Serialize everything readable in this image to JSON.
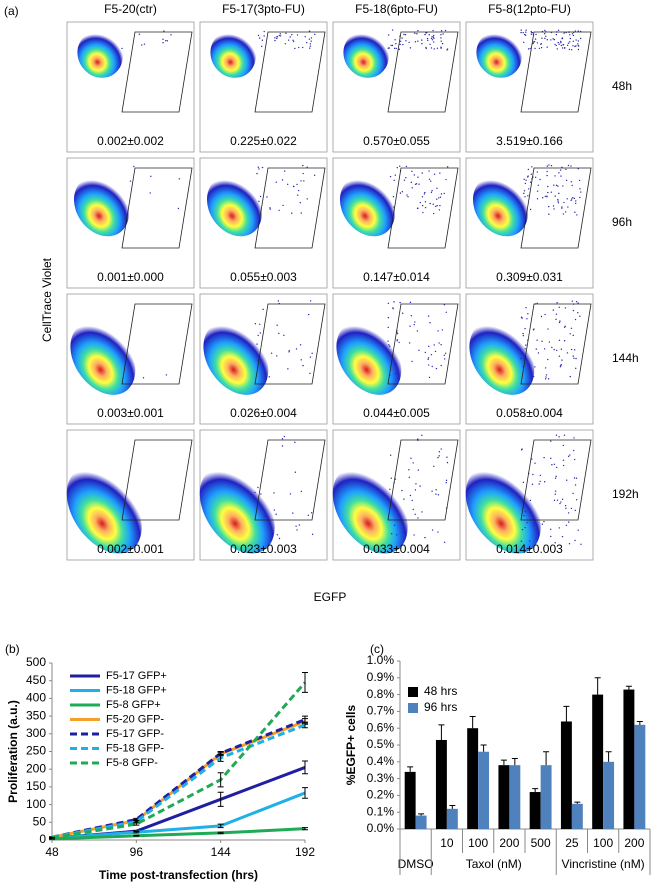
{
  "panel_a": {
    "label": "(a)",
    "columns": [
      "F5-20(ctr)",
      "F5-17(3pto-FU)",
      "F5-18(6pto-FU)",
      "F5-8(12pto-FU)"
    ],
    "rows": [
      "48h",
      "96h",
      "144h",
      "192h"
    ],
    "cells": [
      [
        "0.002±0.002",
        "0.225±0.022",
        "0.570±0.055",
        "3.519±0.166"
      ],
      [
        "0.001±0.000",
        "0.055±0.003",
        "0.147±0.014",
        "0.309±0.031"
      ],
      [
        "0.003±0.001",
        "0.026±0.004",
        "0.044±0.005",
        "0.058±0.004"
      ],
      [
        "0.002±0.001",
        "0.023±0.003",
        "0.033±0.004",
        "0.014±0.003"
      ]
    ],
    "y_label": "CellTrace Violet",
    "x_label": "EGFP"
  },
  "chart_data": [
    {
      "type": "line",
      "label": "(b)",
      "x_label": "Time post-transfection (hrs)",
      "y_label": "Proliferation (a.u.)",
      "x": [
        48,
        96,
        144,
        192
      ],
      "xlim": [
        48,
        192
      ],
      "xticks": [
        48,
        96,
        144,
        192
      ],
      "ylim": [
        0,
        500
      ],
      "yticks": [
        0,
        50,
        100,
        150,
        200,
        250,
        300,
        350,
        400,
        450,
        500
      ],
      "series": [
        {
          "name": "F5-17 GFP+",
          "color": "#1f1fa0",
          "dashed": false,
          "values": [
            5,
            25,
            115,
            205
          ],
          "errors": [
            1,
            2,
            20,
            18
          ]
        },
        {
          "name": "F5-18 GFP+",
          "color": "#1fb0e8",
          "dashed": false,
          "values": [
            5,
            22,
            40,
            133
          ],
          "errors": [
            1,
            2,
            5,
            15
          ]
        },
        {
          "name": "F5-8 GFP+",
          "color": "#1faa55",
          "dashed": false,
          "values": [
            3,
            12,
            20,
            32
          ],
          "errors": [
            1,
            1,
            2,
            3
          ]
        },
        {
          "name": "F5-20  GFP-",
          "color": "#f5a02a",
          "dashed": false,
          "values": [
            8,
            55,
            243,
            335
          ],
          "errors": [
            1,
            3,
            5,
            8
          ]
        },
        {
          "name": "F5-17 GFP-",
          "color": "#1f1fa0",
          "dashed": true,
          "values": [
            8,
            58,
            245,
            340
          ],
          "errors": [
            1,
            3,
            5,
            10
          ]
        },
        {
          "name": "F5-18 GFP-",
          "color": "#1fb0e8",
          "dashed": true,
          "values": [
            8,
            52,
            232,
            325
          ],
          "errors": [
            1,
            3,
            10,
            8
          ]
        },
        {
          "name": "F5-8 GFP-",
          "color": "#1faa55",
          "dashed": true,
          "values": [
            6,
            45,
            170,
            445
          ],
          "errors": [
            1,
            3,
            20,
            28
          ]
        }
      ]
    },
    {
      "type": "bar",
      "label": "(c)",
      "y_label": "%EGFP+ cells",
      "categories": [
        "DMSO",
        "10",
        "100",
        "200",
        "500",
        "25",
        "100",
        "200"
      ],
      "group_labels": [
        "Taxol (nM)",
        "Vincristine (nM)"
      ],
      "ylim": [
        0,
        1.0
      ],
      "yticks": [
        {
          "value": 0,
          "label": "0.0%"
        },
        {
          "value": 0.1,
          "label": "0.1%"
        },
        {
          "value": 0.2,
          "label": "0.2%"
        },
        {
          "value": 0.3,
          "label": "0.3%"
        },
        {
          "value": 0.4,
          "label": "0.4%"
        },
        {
          "value": 0.5,
          "label": "0.5%"
        },
        {
          "value": 0.6,
          "label": "0.6%"
        },
        {
          "value": 0.7,
          "label": "0.7%"
        },
        {
          "value": 0.8,
          "label": "0.8%"
        },
        {
          "value": 0.9,
          "label": "0.9%"
        },
        {
          "value": 1.0,
          "label": "1.0%"
        }
      ],
      "series": [
        {
          "name": "48 hrs",
          "color": "#000000",
          "values": [
            0.34,
            0.53,
            0.6,
            0.38,
            0.22,
            0.64,
            0.8,
            0.83
          ],
          "errors": [
            0.03,
            0.09,
            0.07,
            0.03,
            0.02,
            0.09,
            0.1,
            0.02
          ]
        },
        {
          "name": "96 hrs",
          "color": "#4f81bd",
          "values": [
            0.08,
            0.12,
            0.46,
            0.38,
            0.38,
            0.15,
            0.4,
            0.62
          ],
          "errors": [
            0.01,
            0.02,
            0.04,
            0.04,
            0.08,
            0.01,
            0.06,
            0.02
          ]
        }
      ]
    }
  ]
}
